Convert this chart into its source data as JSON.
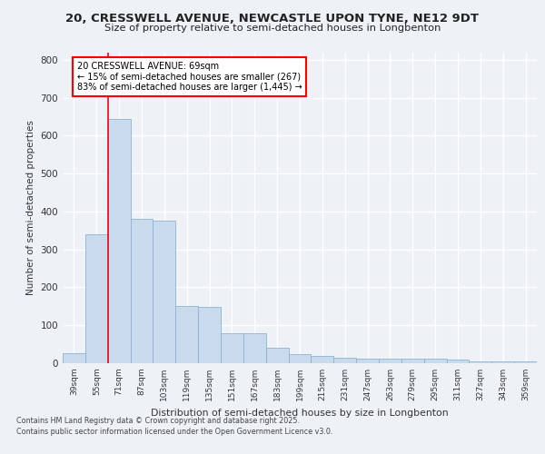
{
  "title1": "20, CRESSWELL AVENUE, NEWCASTLE UPON TYNE, NE12 9DT",
  "title2": "Size of property relative to semi-detached houses in Longbenton",
  "xlabel": "Distribution of semi-detached houses by size in Longbenton",
  "ylabel": "Number of semi-detached properties",
  "categories": [
    "39sqm",
    "55sqm",
    "71sqm",
    "87sqm",
    "103sqm",
    "119sqm",
    "135sqm",
    "151sqm",
    "167sqm",
    "183sqm",
    "199sqm",
    "215sqm",
    "231sqm",
    "247sqm",
    "263sqm",
    "279sqm",
    "295sqm",
    "311sqm",
    "327sqm",
    "343sqm",
    "359sqm"
  ],
  "values": [
    27,
    340,
    645,
    380,
    375,
    150,
    148,
    80,
    78,
    40,
    25,
    18,
    15,
    13,
    12,
    11,
    11,
    10,
    5,
    4,
    4
  ],
  "bar_color": "#c8daeb",
  "bar_edge_color": "#8ab4d4",
  "red_line_x": 1.5,
  "annotation_title": "20 CRESSWELL AVENUE: 69sqm",
  "annotation_line1": "← 15% of semi-detached houses are smaller (267)",
  "annotation_line2": "83% of semi-detached houses are larger (1,445) →",
  "footer1": "Contains HM Land Registry data © Crown copyright and database right 2025.",
  "footer2": "Contains public sector information licensed under the Open Government Licence v3.0.",
  "ylim": [
    0,
    820
  ],
  "yticks": [
    0,
    100,
    200,
    300,
    400,
    500,
    600,
    700,
    800
  ],
  "bg_color": "#eef2f7",
  "plot_bg_color": "#eef2f7"
}
